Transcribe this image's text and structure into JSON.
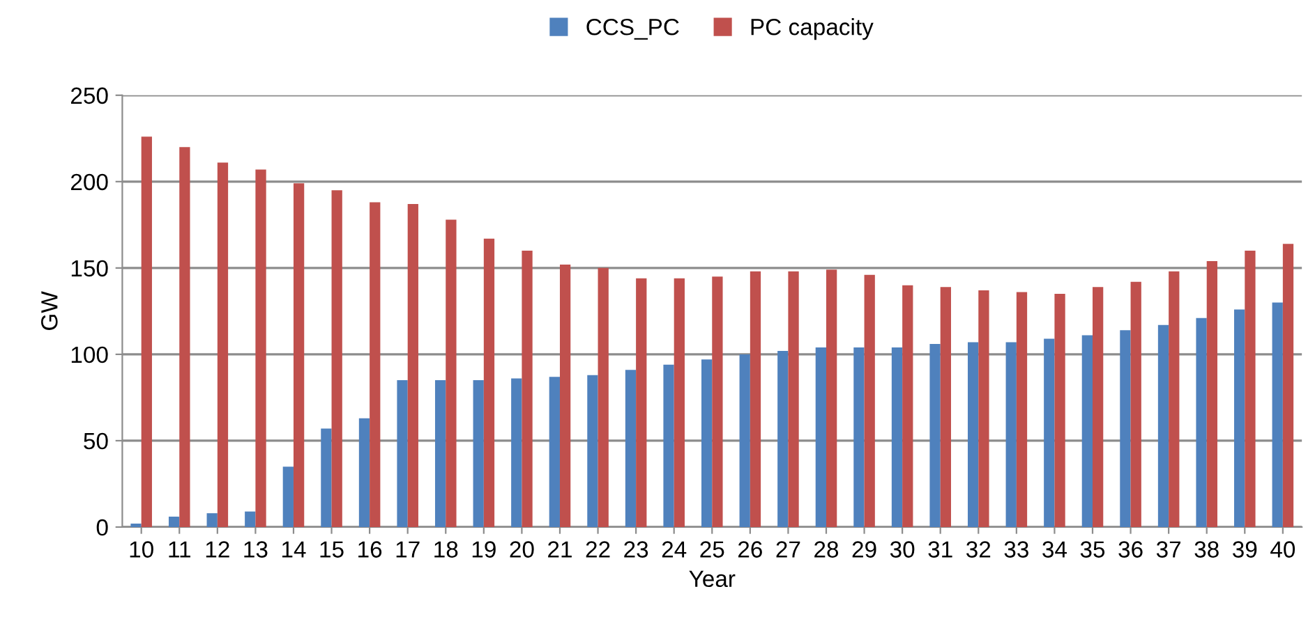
{
  "chart_data": {
    "type": "bar",
    "xlabel": "Year",
    "ylabel": "GW",
    "categories": [
      "10",
      "11",
      "12",
      "13",
      "14",
      "15",
      "16",
      "17",
      "18",
      "19",
      "20",
      "21",
      "22",
      "23",
      "24",
      "25",
      "26",
      "27",
      "28",
      "29",
      "30",
      "31",
      "32",
      "33",
      "34",
      "35",
      "36",
      "37",
      "38",
      "39",
      "40"
    ],
    "series": [
      {
        "name": "CCS_PC",
        "color": "#4f81bd",
        "values": [
          2,
          6,
          8,
          9,
          35,
          57,
          63,
          85,
          85,
          85,
          86,
          87,
          88,
          91,
          94,
          97,
          100,
          102,
          104,
          104,
          104,
          106,
          107,
          107,
          109,
          111,
          114,
          117,
          121,
          126,
          130
        ]
      },
      {
        "name": "PC capacity",
        "color": "#c0504d",
        "values": [
          226,
          220,
          211,
          207,
          199,
          195,
          188,
          187,
          178,
          167,
          160,
          152,
          150,
          144,
          144,
          145,
          148,
          148,
          149,
          146,
          140,
          139,
          137,
          136,
          135,
          139,
          142,
          148,
          154,
          160,
          164
        ]
      }
    ],
    "ylim": [
      0,
      250
    ],
    "yticks": [
      0,
      50,
      100,
      150,
      200,
      250
    ],
    "grid": "y",
    "legend": "top"
  }
}
